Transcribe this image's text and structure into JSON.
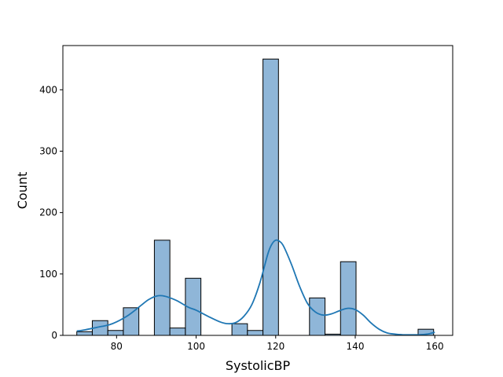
{
  "chart_data": {
    "type": "bar",
    "title": "",
    "xlabel": "SystolicBP",
    "ylabel": "Count",
    "xlim": [
      66.5,
      164.5
    ],
    "ylim": [
      0,
      472
    ],
    "grid": false,
    "x_ticks": [
      80,
      100,
      120,
      140,
      160
    ],
    "y_ticks": [
      0,
      100,
      200,
      300,
      400
    ],
    "bin_width": 3.9,
    "bins": [
      {
        "start": 70.0,
        "count": 6
      },
      {
        "start": 73.9,
        "count": 24
      },
      {
        "start": 77.8,
        "count": 8
      },
      {
        "start": 81.7,
        "count": 45
      },
      {
        "start": 85.6,
        "count": 0
      },
      {
        "start": 89.5,
        "count": 155
      },
      {
        "start": 93.4,
        "count": 12
      },
      {
        "start": 97.3,
        "count": 93
      },
      {
        "start": 101.2,
        "count": 0
      },
      {
        "start": 105.1,
        "count": 0
      },
      {
        "start": 109.0,
        "count": 19
      },
      {
        "start": 112.9,
        "count": 8
      },
      {
        "start": 116.8,
        "count": 450
      },
      {
        "start": 120.7,
        "count": 0
      },
      {
        "start": 124.6,
        "count": 0
      },
      {
        "start": 128.5,
        "count": 61
      },
      {
        "start": 132.4,
        "count": 2
      },
      {
        "start": 136.3,
        "count": 120
      },
      {
        "start": 140.2,
        "count": 0
      },
      {
        "start": 144.1,
        "count": 0
      },
      {
        "start": 148.0,
        "count": 0
      },
      {
        "start": 151.9,
        "count": 0
      },
      {
        "start": 155.8,
        "count": 10
      }
    ],
    "kde": {
      "x": [
        70,
        72,
        75,
        78,
        80,
        83,
        86,
        88,
        90,
        92,
        95,
        98,
        100,
        103,
        106,
        108,
        110,
        112,
        114,
        116,
        118,
        119,
        120,
        121,
        122,
        124,
        126,
        128,
        130,
        132,
        134,
        136,
        138,
        140,
        142,
        144,
        146,
        148,
        150,
        152,
        154,
        156,
        158,
        160
      ],
      "y": [
        7,
        9,
        13,
        17,
        22,
        33,
        48,
        58,
        64,
        64,
        57,
        46,
        41,
        31,
        22,
        19,
        21,
        31,
        50,
        85,
        132,
        148,
        155,
        153,
        145,
        115,
        80,
        52,
        38,
        33,
        35,
        40,
        44,
        42,
        33,
        20,
        10,
        4,
        2,
        1,
        1,
        1,
        2,
        5
      ],
      "color": "#1f77b4"
    },
    "bar_fill": "#8fb6d8",
    "bar_edge": "#000000"
  }
}
